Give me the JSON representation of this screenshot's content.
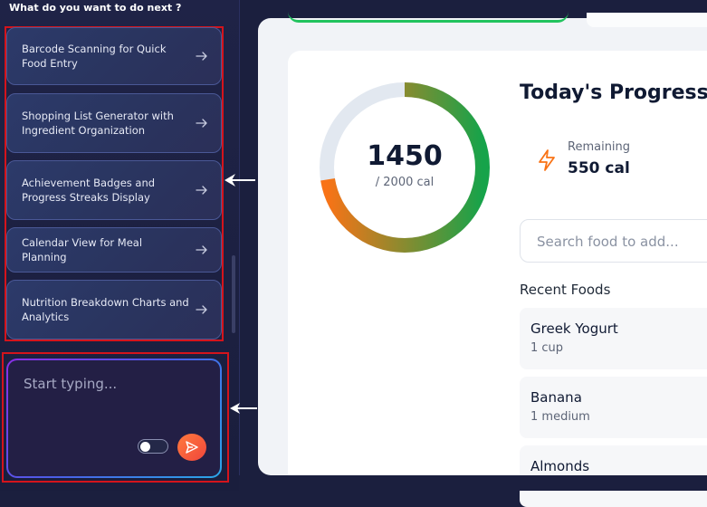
{
  "sidebar": {
    "prompt_title": "What do you want to do next ?",
    "suggestions": [
      {
        "label": "Barcode Scanning for Quick Food Entry"
      },
      {
        "label": "Shopping List Generator with Ingredient Organization"
      },
      {
        "label": "Achievement Badges and Progress Streaks Display"
      },
      {
        "label": "Calendar View for Meal Planning"
      },
      {
        "label": "Nutrition Breakdown Charts and Analytics"
      }
    ],
    "chat": {
      "placeholder": "Start typing..."
    }
  },
  "main": {
    "ring": {
      "consumed": "1450",
      "goal_label": "/ 2000 cal",
      "fraction": 0.725
    },
    "title": "Today's Progress",
    "remaining": {
      "label": "Remaining",
      "value": "550 cal",
      "icon": "lightning-icon"
    },
    "search": {
      "placeholder": "Search food to add..."
    },
    "recent_title": "Recent Foods",
    "recent_foods": [
      {
        "name": "Greek Yogurt",
        "qty": "1 cup"
      },
      {
        "name": "Banana",
        "qty": "1 medium"
      },
      {
        "name": "Almonds",
        "qty": ""
      }
    ]
  },
  "colors": {
    "ring_start": "#f97316",
    "ring_end": "#16a34a",
    "ring_track": "#e2e8f0",
    "accent": "#f0463c"
  }
}
